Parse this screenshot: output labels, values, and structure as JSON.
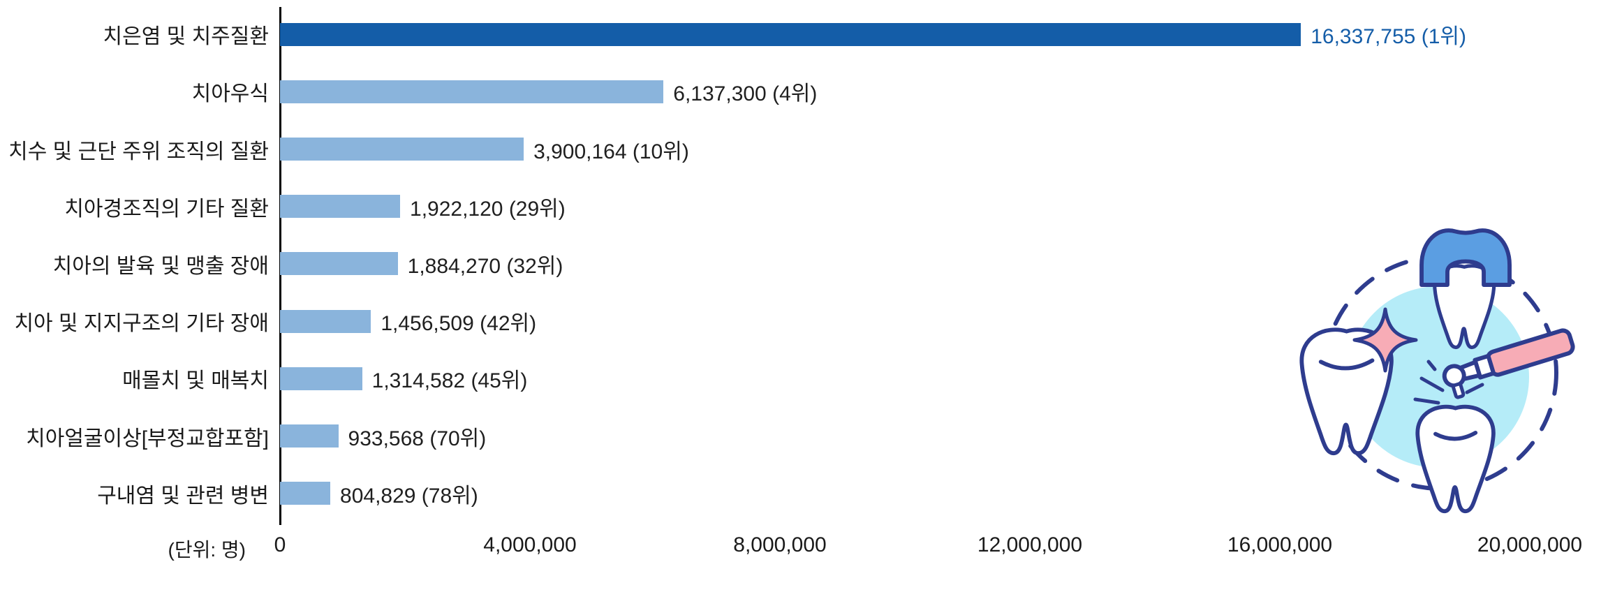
{
  "chart_data": {
    "type": "bar",
    "orientation": "horizontal",
    "title": "",
    "unit_label": "(단위: 명)",
    "categories": [
      "치은염 및 치주질환",
      "치아우식",
      "치수 및 근단 주위 조직의 질환",
      "치아경조직의 기타 질환",
      "치아의 발육 및 맹출 장애",
      "치아 및 지지구조의 기타 장애",
      "매몰치 및 매복치",
      "치아얼굴이상[부정교합포함]",
      "구내염 및 관련 병변"
    ],
    "values": [
      16337755,
      6137300,
      3900164,
      1922120,
      1884270,
      1456509,
      1314582,
      933568,
      804829
    ],
    "ranks": [
      1,
      4,
      10,
      29,
      32,
      42,
      45,
      70,
      78
    ],
    "value_labels": [
      "16,337,755 (1위)",
      "6,137,300 (4위)",
      "3,900,164 (10위)",
      "1,922,120 (29위)",
      "1,884,270 (32위)",
      "1,456,509 (42위)",
      "1,314,582 (45위)",
      "933,568 (70위)",
      "804,829 (78위)"
    ],
    "highlight_index": 0,
    "xlim": [
      0,
      20000000
    ],
    "x_tick_labels": [
      "0",
      "4,000,000",
      "8,000,000",
      "12,000,000",
      "16,000,000",
      "20,000,000"
    ],
    "grid": false,
    "legend": "none",
    "colors": {
      "primary_bar": "#145da8",
      "secondary_bar": "#8ab4dc",
      "axis": "#000000",
      "text": "#1a1a1a"
    }
  },
  "illustration": {
    "name": "dental-care-illustration",
    "elements": [
      "sparkling-tooth",
      "dental-crown-tooth",
      "dental-drill-tooth",
      "dashed-circle"
    ],
    "colors": {
      "outline": "#2e3c8e",
      "circle_fill": "#b5ecf8",
      "crown_fill": "#5b9ee2",
      "accent_pink": "#f7acb6",
      "tooth_fill": "#ffffff"
    }
  }
}
